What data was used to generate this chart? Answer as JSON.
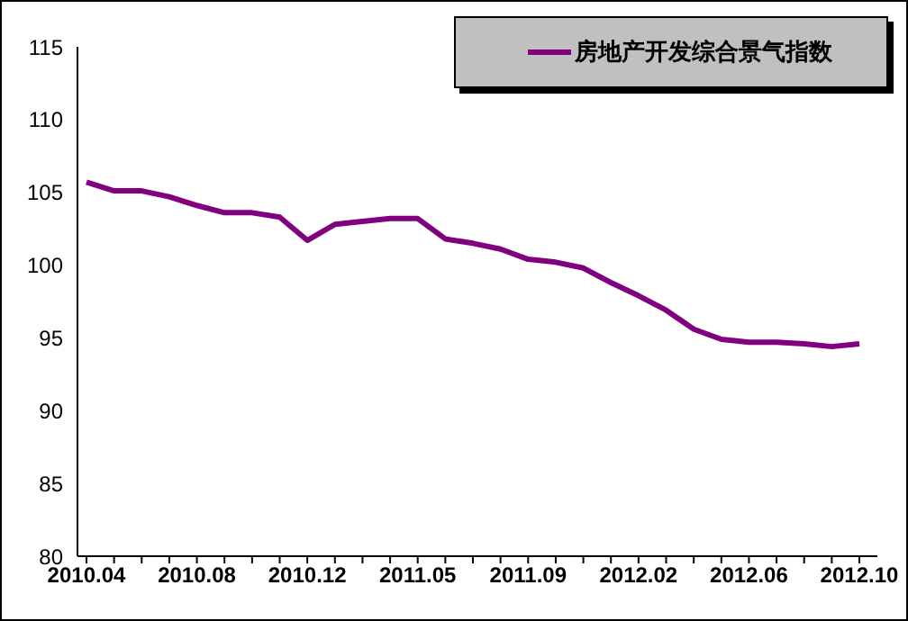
{
  "chart_data": {
    "type": "line",
    "categories": [
      "2010.04",
      null,
      null,
      null,
      "2010.08",
      null,
      null,
      null,
      "2010.12",
      null,
      null,
      null,
      "2011.05",
      null,
      null,
      null,
      "2011.09",
      null,
      null,
      null,
      "2012.02",
      null,
      null,
      null,
      "2012.06",
      null,
      null,
      null,
      "2012.10"
    ],
    "series": [
      {
        "name": "房地产开发综合景气指数",
        "color": "#800080",
        "values": [
          105.7,
          105.1,
          105.1,
          104.7,
          104.1,
          103.6,
          103.6,
          103.3,
          101.7,
          102.8,
          103.0,
          103.2,
          103.2,
          101.8,
          101.5,
          101.1,
          100.4,
          100.2,
          99.8,
          98.8,
          97.9,
          96.9,
          95.6,
          94.9,
          94.7,
          94.7,
          94.6,
          94.4,
          94.6
        ]
      }
    ],
    "ylim": [
      80,
      115
    ],
    "yticks": [
      80,
      85,
      90,
      95,
      100,
      105,
      110,
      115
    ],
    "grid": false,
    "legend": "top right",
    "marker": "none",
    "line_style": "solid"
  }
}
